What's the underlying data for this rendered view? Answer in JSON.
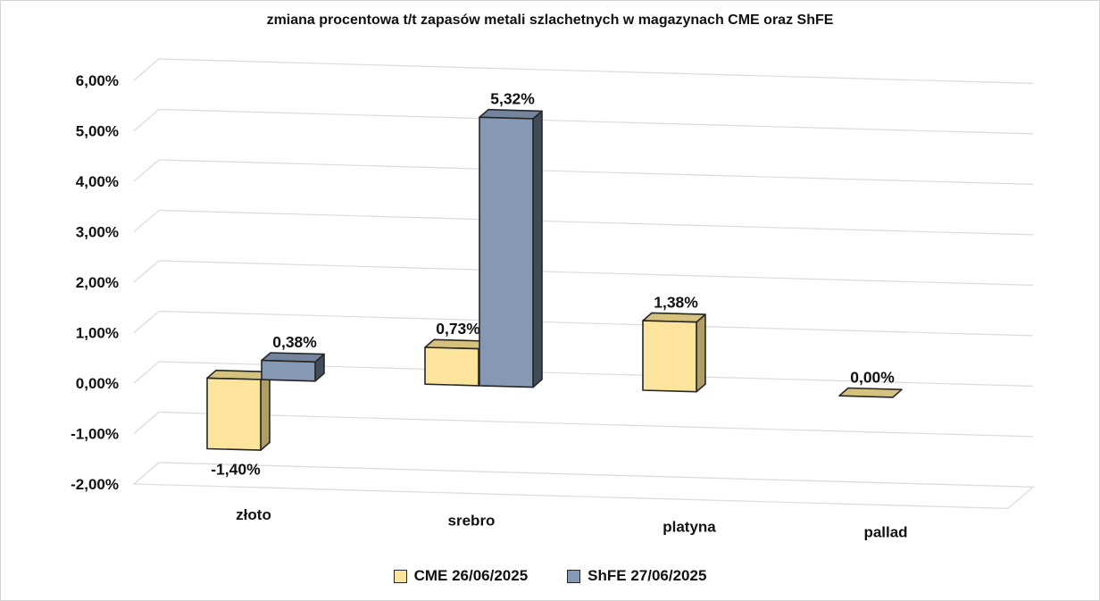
{
  "chart_data": {
    "type": "bar",
    "style": "3d-clustered-column",
    "title": "zmiana procentowa t/t zapasów metali szlachetnych w magazynach CME oraz ShFE",
    "categories": [
      "złoto",
      "srebro",
      "platyna",
      "pallad"
    ],
    "series": [
      {
        "name": "CME 26/06/2025",
        "values": [
          -1.4,
          0.73,
          1.38,
          0.0
        ],
        "labels": [
          "-1,40%",
          "0,73%",
          "1,38%",
          "0,00%"
        ],
        "color_front": "#FCE49D",
        "color_top": "#D5C27E",
        "color_side": "#AE9D65"
      },
      {
        "name": "ShFE 27/06/2025",
        "values": [
          0.38,
          5.32,
          null,
          null
        ],
        "labels": [
          "0,38%",
          "5,32%",
          null,
          null
        ],
        "color_front": "#8599B4",
        "color_top": "#73849C",
        "color_side": "#414B5A"
      }
    ],
    "y_axis": {
      "min": -2,
      "max": 6,
      "step": 1,
      "tick_labels": [
        "-2,00%",
        "-1,00%",
        "0,00%",
        "1,00%",
        "2,00%",
        "3,00%",
        "4,00%",
        "5,00%",
        "6,00%"
      ]
    },
    "grid": true,
    "legend_position": "bottom",
    "colors": {
      "grid": "#DBDBDB",
      "bar_outline": "#262626",
      "text": "#111111",
      "background": "#FFFFFF"
    }
  }
}
